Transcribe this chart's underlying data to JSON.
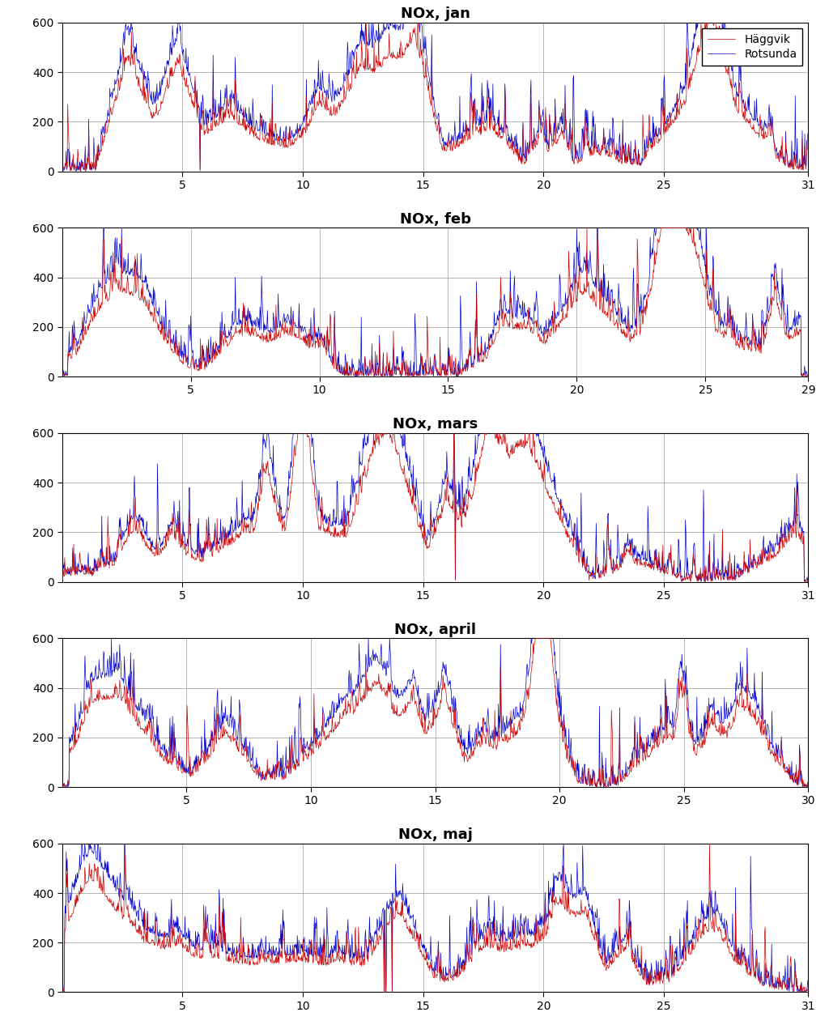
{
  "months": [
    "jan",
    "feb",
    "mars",
    "april",
    "maj"
  ],
  "days_in_month": [
    31,
    29,
    31,
    30,
    31
  ],
  "ylim": [
    0,
    600
  ],
  "yticks": [
    0,
    200,
    400,
    600
  ],
  "title_prefix": "NOx, ",
  "haggvik_color": "#cc0000",
  "rotsunda_color": "#0000cc",
  "legend_labels": [
    "Häggvik",
    "Rotsunda"
  ],
  "bg_color": "#ffffff",
  "grid_color": "#aaaaaa",
  "linewidth": 0.5,
  "figsize": [
    10.24,
    12.66
  ],
  "dpi": 100,
  "seeds": [
    42,
    123,
    456,
    789,
    1011
  ],
  "points_per_day": 48
}
